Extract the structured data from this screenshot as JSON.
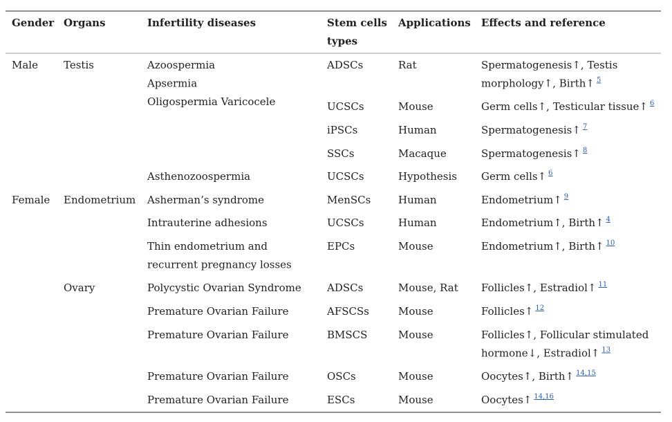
{
  "table": {
    "header": [
      "Gender",
      "Organs",
      "Infertility diseases",
      [
        "Stem cells",
        "types"
      ],
      "Applications",
      "Effects and reference"
    ],
    "rows": [
      {
        "gender": "Male",
        "organ": "Testis",
        "disease": [
          "Azoospermia",
          "Apsermia",
          "Oligospermia Varicocele"
        ],
        "cell": "ADSCs",
        "app": "Rat",
        "effect": [
          "Spermatogenesis↑, Testis",
          "morphology↑, Birth↑"
        ],
        "ref": "5"
      },
      {
        "cell": "UCSCs",
        "app": "Mouse",
        "effect": [
          "Germ cells↑, Testicular tissue↑"
        ],
        "ref": "6"
      },
      {
        "cell": "iPSCs",
        "app": "Human",
        "effect": [
          "Spermatogenesis↑"
        ],
        "ref": "7"
      },
      {
        "cell": "SSCs",
        "app": "Macaque",
        "effect": [
          "Spermatogenesis↑"
        ],
        "ref": "8"
      },
      {
        "disease": [
          "Asthenozoospermia"
        ],
        "cell": "UCSCs",
        "app": "Hypothesis",
        "effect": [
          "Germ cells↑"
        ],
        "ref": "6"
      },
      {
        "gender": "Female",
        "organ": "Endometrium",
        "disease": [
          "Asherman’s syndrome"
        ],
        "cell": "MenSCs",
        "app": "Human",
        "effect": [
          "Endometrium↑"
        ],
        "ref": "9"
      },
      {
        "disease": [
          "Intrauterine adhesions"
        ],
        "cell": "UCSCs",
        "app": "Human",
        "effect": [
          "Endometrium↑, Birth↑"
        ],
        "ref": "4"
      },
      {
        "disease": [
          "Thin endometrium and",
          "recurrent pregnancy losses"
        ],
        "cell": "EPCs",
        "app": "Mouse",
        "effect": [
          "Endometrium↑, Birth↑"
        ],
        "ref": "10"
      },
      {
        "organ": "Ovary",
        "disease": [
          "Polycystic Ovarian Syndrome"
        ],
        "cell": "ADSCs",
        "app": "Mouse, Rat",
        "effect": [
          "Follicles↑, Estradiol↑"
        ],
        "ref": "11"
      },
      {
        "disease": [
          "Premature Ovarian Failure"
        ],
        "cell": "AFSCSs",
        "app": "Mouse",
        "effect": [
          "Follicles↑"
        ],
        "ref": "12"
      },
      {
        "disease": [
          "Premature Ovarian Failure"
        ],
        "cell": "BMSCS",
        "app": "Mouse",
        "effect": [
          "Follicles↑, Follicular stimulated",
          "hormone↓, Estradiol↑"
        ],
        "ref": "13"
      },
      {
        "disease": [
          "Premature Ovarian Failure"
        ],
        "cell": "OSCs",
        "app": "Mouse",
        "effect": [
          "Oocytes↑, Birth↑"
        ],
        "ref": "14,15"
      },
      {
        "disease": [
          "Premature Ovarian Failure"
        ],
        "cell": "ESCs",
        "app": "Mouse",
        "effect": [
          "Oocytes↑"
        ],
        "ref": "14,16"
      }
    ]
  }
}
